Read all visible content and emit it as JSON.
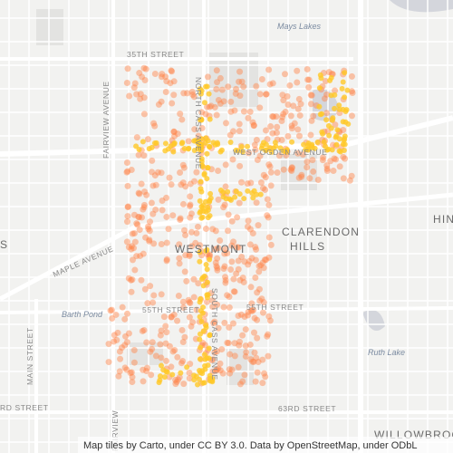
{
  "map": {
    "labels": [
      "Mays Lakes",
      "35TH STREET",
      "FAIRVIEW AVENUE",
      "NORTH CASS AVENUE",
      "WEST OGDEN AVENUE",
      "MAPLE AVENUE",
      "WESTMONT",
      "CLARENDON",
      "HILLS",
      "Barth Pond",
      "55TH STREET",
      "55TH STREET",
      "SOUTH CASS AVENUE",
      "MAIN STREET",
      "Ruth Lake",
      "RD STREET",
      "63RD STREET",
      "WILLOWBROO",
      "HIN",
      "S",
      "FAIRVIEW"
    ]
  },
  "attribution": "Map tiles by Carto, under CC BY 3.0. Data by OpenStreetMap, under ODbL"
}
